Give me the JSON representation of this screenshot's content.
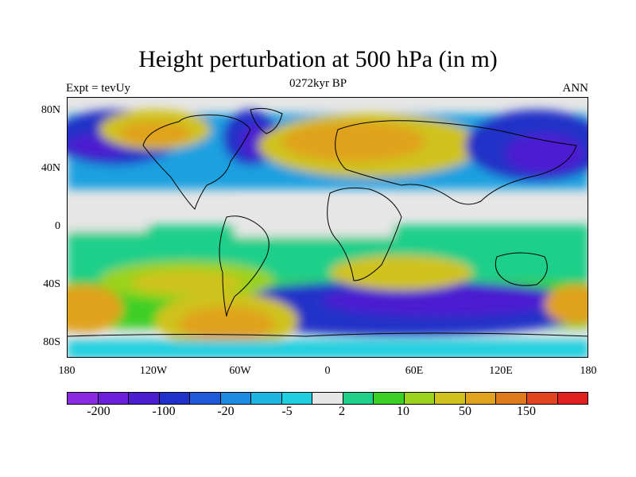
{
  "title": "Height perturbation at 500 hPa (in m)",
  "subtitle_left": "Expt = tevUy",
  "subtitle_center": "0272kyr BP",
  "subtitle_right": "ANN",
  "lat_ticks": [
    "80N",
    "40N",
    "0",
    "40S",
    "80S"
  ],
  "lon_ticks": [
    "180",
    "120W",
    "60W",
    "0",
    "60E",
    "120E",
    "180"
  ],
  "colorbar": {
    "colors": [
      "#8a2be2",
      "#6a1fd8",
      "#4b1fd0",
      "#2030c8",
      "#1f5bd8",
      "#1f8be0",
      "#20b4e0",
      "#1fcfe0",
      "#e6e6e6",
      "#1fd08a",
      "#3ccf25",
      "#9ad21f",
      "#cfc21f",
      "#e0a21f",
      "#e07a1f",
      "#e0451f",
      "#e0201f"
    ],
    "labels": [
      "-200",
      "-100",
      "-20",
      "-5",
      "2",
      "10",
      "50",
      "150"
    ]
  },
  "map": {
    "field": "Height perturbation at 500 hPa",
    "units": "m",
    "projection": "cylindrical equidistant",
    "lat_range": [
      -90,
      90
    ],
    "lon_range": [
      -180,
      180
    ]
  }
}
